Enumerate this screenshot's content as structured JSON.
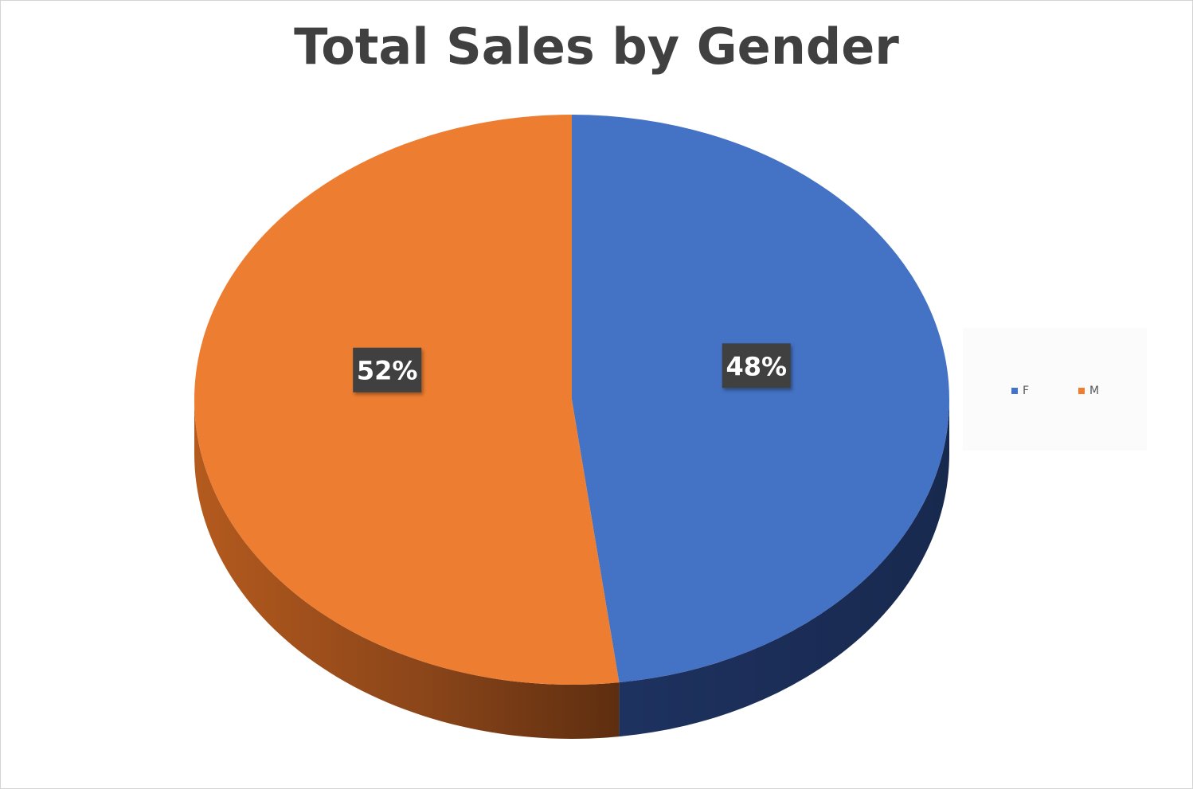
{
  "chart_data": {
    "type": "pie",
    "title": "Total Sales by Gender",
    "slices": [
      {
        "name": "F",
        "value": 48,
        "label": "48%",
        "color": "#4472C4",
        "side_color": "#1B2C51"
      },
      {
        "name": "M",
        "value": 52,
        "label": "52%",
        "color": "#ED7D31",
        "side_color": "#7A3E15"
      }
    ],
    "legend": {
      "position": "right",
      "entries": [
        "F",
        "M"
      ]
    },
    "style": "3d"
  }
}
